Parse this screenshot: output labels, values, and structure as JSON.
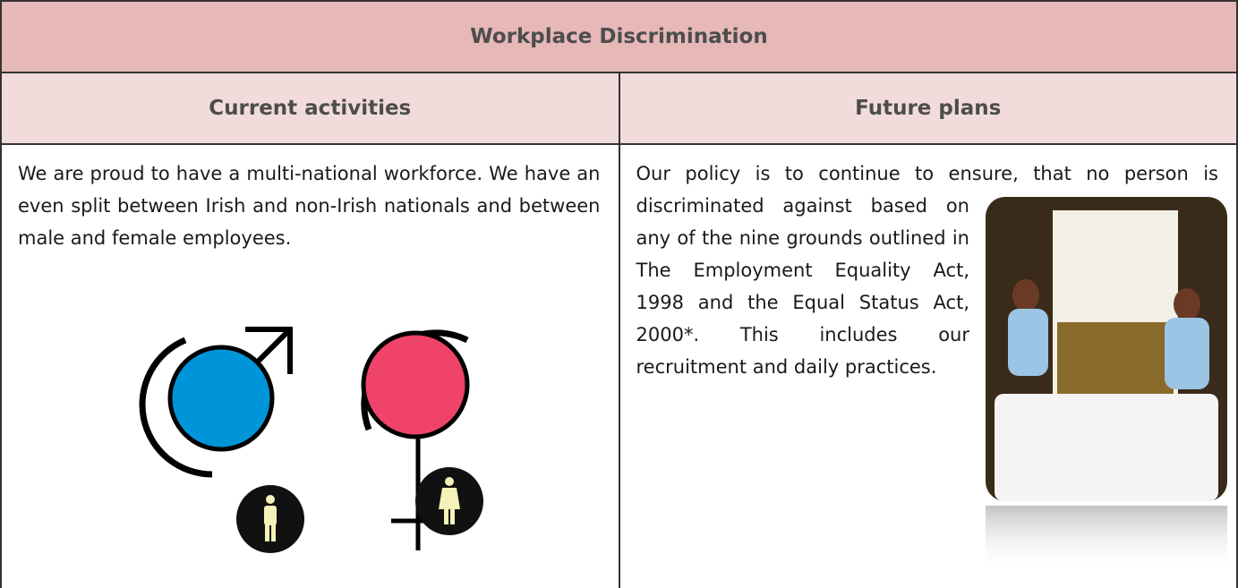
{
  "title": "Workplace Discrimination",
  "columns": [
    "Current activities",
    "Future plans"
  ],
  "cells": [
    "We are proud to have a multi-national workforce. We have an even split between Irish and non-Irish nationals and between male and female employees.",
    "Our policy is to continue to ensure, that no person is discriminated against based on any of the nine grounds outlined in The Employment Equality Act, 1998 and the Equal Status Act, 2000*. This includes our recruitment and daily practices."
  ]
}
